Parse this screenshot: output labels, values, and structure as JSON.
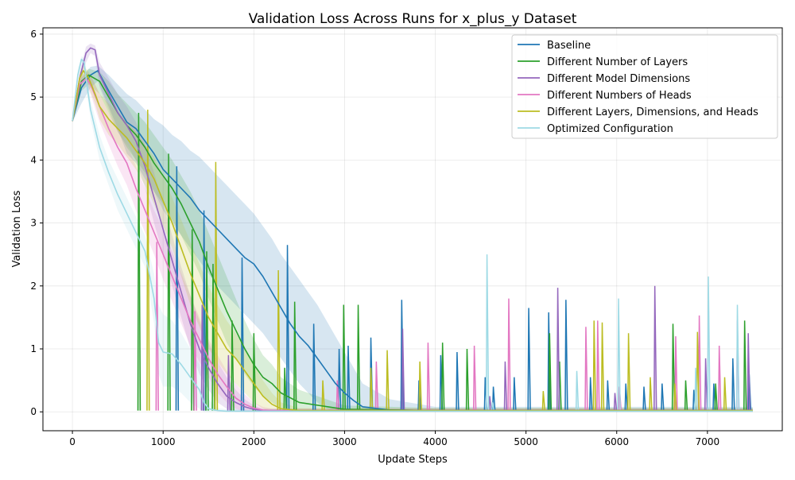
{
  "chart_data": {
    "type": "line",
    "title": "Validation Loss Across Runs for x_plus_y Dataset",
    "xlabel": "Update Steps",
    "ylabel": "Validation Loss",
    "xlim": [
      -325,
      7825
    ],
    "ylim": [
      -0.3,
      6.1
    ],
    "xticks": [
      0,
      1000,
      2000,
      3000,
      4000,
      5000,
      6000,
      7000
    ],
    "yticks": [
      0,
      1,
      2,
      3,
      4,
      5,
      6
    ],
    "grid": true,
    "legend_position": "top-right",
    "series": [
      {
        "name": "Baseline",
        "color": "#1f77b4",
        "x": [
          0,
          100,
          200,
          280,
          400,
          500,
          600,
          700,
          800,
          900,
          1000,
          1100,
          1200,
          1300,
          1400,
          1500,
          1600,
          1700,
          1800,
          1900,
          2000,
          2100,
          2200,
          2300,
          2400,
          2500,
          2600,
          2700,
          2800,
          2900,
          3000,
          3100,
          3200,
          3500,
          4000,
          5000,
          6000,
          7000,
          7500
        ],
        "y": [
          4.62,
          5.15,
          5.35,
          5.42,
          5.1,
          4.85,
          4.6,
          4.5,
          4.3,
          4.1,
          3.85,
          3.7,
          3.55,
          3.4,
          3.2,
          3.05,
          2.9,
          2.75,
          2.6,
          2.45,
          2.35,
          2.15,
          1.9,
          1.65,
          1.4,
          1.2,
          1.05,
          0.85,
          0.65,
          0.45,
          0.3,
          0.18,
          0.08,
          0.03,
          0.02,
          0.02,
          0.02,
          0.02,
          0.02
        ],
        "band_upper": [
          4.65,
          5.3,
          5.48,
          5.5,
          5.35,
          5.2,
          5.05,
          4.95,
          4.8,
          4.65,
          4.55,
          4.4,
          4.3,
          4.15,
          4.05,
          3.9,
          3.75,
          3.6,
          3.45,
          3.3,
          3.15,
          2.95,
          2.75,
          2.5,
          2.3,
          2.1,
          1.9,
          1.7,
          1.45,
          1.2,
          0.95,
          0.7,
          0.45,
          0.2,
          0.08,
          0.08,
          0.08,
          0.08,
          0.08
        ],
        "band_lower": [
          4.6,
          4.9,
          5.15,
          5.25,
          4.85,
          4.5,
          4.1,
          3.95,
          3.7,
          3.5,
          3.2,
          3.0,
          2.8,
          2.6,
          2.4,
          2.2,
          2.0,
          1.85,
          1.7,
          1.55,
          1.4,
          1.25,
          1.05,
          0.85,
          0.65,
          0.45,
          0.3,
          0.15,
          0.05,
          0.0,
          0.0,
          0.0,
          0.0,
          0.0,
          0.0,
          0.0,
          0.0,
          0.0,
          0.0
        ],
        "spikes": [
          [
            1150,
            3.9
          ],
          [
            1450,
            3.2
          ],
          [
            1870,
            2.45
          ],
          [
            2370,
            2.65
          ],
          [
            2660,
            1.4
          ],
          [
            2940,
            1.0
          ],
          [
            3040,
            1.05
          ],
          [
            3290,
            1.18
          ],
          [
            3630,
            1.78
          ],
          [
            3820,
            0.5
          ],
          [
            4060,
            0.9
          ],
          [
            4240,
            0.95
          ],
          [
            4550,
            0.55
          ],
          [
            4640,
            0.4
          ],
          [
            4870,
            0.55
          ],
          [
            5030,
            1.65
          ],
          [
            5250,
            1.58
          ],
          [
            5440,
            1.78
          ],
          [
            5710,
            0.55
          ],
          [
            5900,
            0.5
          ],
          [
            6100,
            0.45
          ],
          [
            6300,
            0.4
          ],
          [
            6500,
            0.45
          ],
          [
            6850,
            0.35
          ],
          [
            7070,
            0.45
          ],
          [
            7280,
            0.85
          ],
          [
            7460,
            0.6
          ]
        ]
      },
      {
        "name": "Different Number of Layers",
        "color": "#2ca02c",
        "x": [
          0,
          100,
          180,
          300,
          400,
          500,
          600,
          700,
          800,
          900,
          1000,
          1100,
          1200,
          1300,
          1400,
          1500,
          1600,
          1700,
          1800,
          1900,
          2000,
          2100,
          2200,
          2300,
          2500,
          3000,
          4000,
          5000,
          6000,
          7000,
          7500
        ],
        "y": [
          4.62,
          5.25,
          5.35,
          5.25,
          5.0,
          4.75,
          4.55,
          4.4,
          4.2,
          3.95,
          3.75,
          3.55,
          3.3,
          3.0,
          2.7,
          2.3,
          1.95,
          1.6,
          1.3,
          1.0,
          0.75,
          0.55,
          0.45,
          0.3,
          0.15,
          0.04,
          0.02,
          0.02,
          0.02,
          0.02,
          0.02
        ],
        "band_upper": [
          4.65,
          5.35,
          5.45,
          5.4,
          5.25,
          5.05,
          4.9,
          4.75,
          4.6,
          4.4,
          4.2,
          4.0,
          3.75,
          3.5,
          3.2,
          2.85,
          2.5,
          2.15,
          1.8,
          1.45,
          1.15,
          0.9,
          0.75,
          0.55,
          0.35,
          0.1,
          0.06,
          0.06,
          0.06,
          0.06,
          0.06
        ],
        "band_lower": [
          4.6,
          5.1,
          5.2,
          5.05,
          4.75,
          4.45,
          4.2,
          4.0,
          3.8,
          3.5,
          3.3,
          3.05,
          2.8,
          2.5,
          2.2,
          1.8,
          1.45,
          1.1,
          0.85,
          0.6,
          0.4,
          0.25,
          0.15,
          0.05,
          0.0,
          0.0,
          0.0,
          0.0,
          0.0,
          0.0,
          0.0
        ],
        "spikes": [
          [
            730,
            4.75
          ],
          [
            1060,
            4.1
          ],
          [
            1320,
            2.9
          ],
          [
            1480,
            2.55
          ],
          [
            1550,
            2.35
          ],
          [
            1760,
            1.45
          ],
          [
            2000,
            1.25
          ],
          [
            2340,
            0.7
          ],
          [
            2450,
            1.75
          ],
          [
            2990,
            1.7
          ],
          [
            3150,
            1.7
          ],
          [
            4080,
            1.1
          ],
          [
            4350,
            1.0
          ],
          [
            5260,
            1.25
          ],
          [
            5370,
            0.8
          ],
          [
            6620,
            1.4
          ],
          [
            6760,
            0.5
          ],
          [
            7090,
            0.45
          ],
          [
            7410,
            1.45
          ]
        ]
      },
      {
        "name": "Different Model Dimensions",
        "color": "#9467bd",
        "x": [
          0,
          80,
          150,
          200,
          250,
          300,
          400,
          500,
          600,
          700,
          800,
          900,
          1000,
          1100,
          1200,
          1300,
          1400,
          1500,
          1600,
          1700,
          1800,
          1900,
          2000,
          2100,
          2200,
          2300,
          2500,
          3000,
          4000,
          5000,
          6000,
          7000,
          7500
        ],
        "y": [
          4.62,
          5.3,
          5.7,
          5.78,
          5.75,
          5.35,
          5.05,
          4.75,
          4.55,
          4.3,
          3.9,
          3.4,
          2.9,
          2.4,
          1.9,
          1.4,
          1.0,
          0.7,
          0.45,
          0.25,
          0.15,
          0.08,
          0.04,
          0.02,
          0.02,
          0.02,
          0.02,
          0.02,
          0.02,
          0.02,
          0.02,
          0.02,
          0.02
        ],
        "band_upper": [
          4.65,
          5.4,
          5.8,
          5.85,
          5.82,
          5.55,
          5.3,
          5.05,
          4.85,
          4.6,
          4.25,
          3.8,
          3.3,
          2.8,
          2.3,
          1.85,
          1.45,
          1.1,
          0.8,
          0.55,
          0.35,
          0.2,
          0.1,
          0.05,
          0.05,
          0.05,
          0.05,
          0.05,
          0.05,
          0.05,
          0.05,
          0.05,
          0.05
        ],
        "band_lower": [
          4.6,
          5.2,
          5.55,
          5.7,
          5.65,
          5.15,
          4.8,
          4.45,
          4.25,
          4.0,
          3.55,
          3.0,
          2.5,
          2.0,
          1.5,
          1.0,
          0.6,
          0.35,
          0.15,
          0.05,
          0.0,
          0.0,
          0.0,
          0.0,
          0.0,
          0.0,
          0.0,
          0.0,
          0.0,
          0.0,
          0.0,
          0.0,
          0.0
        ],
        "spikes": [
          [
            1430,
            1.7
          ],
          [
            1720,
            0.9
          ],
          [
            3640,
            1.32
          ],
          [
            4600,
            0.25
          ],
          [
            4770,
            0.8
          ],
          [
            5350,
            1.97
          ],
          [
            5980,
            0.3
          ],
          [
            6420,
            2.0
          ],
          [
            6980,
            0.85
          ],
          [
            7450,
            1.25
          ]
        ]
      },
      {
        "name": "Different Numbers of Heads",
        "color": "#e377c2",
        "x": [
          0,
          80,
          150,
          200,
          300,
          400,
          500,
          600,
          700,
          800,
          900,
          1000,
          1100,
          1200,
          1300,
          1400,
          1500,
          1600,
          1700,
          1800,
          1900,
          2000,
          2100,
          2200,
          2300,
          2500,
          3000,
          4000,
          5000,
          6000,
          7000,
          7500
        ],
        "y": [
          4.62,
          5.2,
          5.3,
          5.2,
          4.85,
          4.5,
          4.2,
          3.95,
          3.55,
          3.2,
          2.85,
          2.5,
          2.15,
          1.8,
          1.45,
          1.15,
          0.85,
          0.6,
          0.4,
          0.22,
          0.12,
          0.06,
          0.03,
          0.02,
          0.02,
          0.02,
          0.02,
          0.02,
          0.02,
          0.02,
          0.02,
          0.02
        ],
        "band_upper": [
          4.65,
          5.3,
          5.4,
          5.35,
          5.05,
          4.75,
          4.5,
          4.25,
          3.9,
          3.55,
          3.2,
          2.9,
          2.55,
          2.2,
          1.85,
          1.5,
          1.15,
          0.9,
          0.65,
          0.45,
          0.28,
          0.15,
          0.08,
          0.05,
          0.05,
          0.05,
          0.05,
          0.05,
          0.05,
          0.05,
          0.05,
          0.05
        ],
        "band_lower": [
          4.6,
          5.1,
          5.2,
          5.05,
          4.6,
          4.25,
          3.9,
          3.6,
          3.2,
          2.85,
          2.5,
          2.1,
          1.75,
          1.4,
          1.05,
          0.8,
          0.55,
          0.3,
          0.15,
          0.05,
          0.0,
          0.0,
          0.0,
          0.0,
          0.0,
          0.0,
          0.0,
          0.0,
          0.0,
          0.0,
          0.0,
          0.0
        ],
        "spikes": [
          [
            930,
            2.7
          ],
          [
            1350,
            1.6
          ],
          [
            2920,
            0.5
          ],
          [
            3350,
            0.8
          ],
          [
            3920,
            1.1
          ],
          [
            4430,
            1.05
          ],
          [
            4810,
            1.8
          ],
          [
            5660,
            1.35
          ],
          [
            5790,
            1.45
          ],
          [
            6030,
            0.4
          ],
          [
            6650,
            1.2
          ],
          [
            6910,
            1.53
          ],
          [
            7130,
            1.05
          ],
          [
            7330,
            1.45
          ]
        ]
      },
      {
        "name": "Different Layers, Dimensions, and Heads",
        "color": "#bcbd22",
        "x": [
          0,
          80,
          120,
          180,
          250,
          300,
          400,
          500,
          600,
          700,
          800,
          900,
          1000,
          1100,
          1200,
          1300,
          1400,
          1500,
          1600,
          1700,
          1800,
          1900,
          2000,
          2100,
          2200,
          2300,
          2500,
          3000,
          4000,
          5000,
          6000,
          7000,
          7500
        ],
        "y": [
          4.62,
          5.3,
          5.42,
          5.3,
          5.05,
          4.85,
          4.65,
          4.5,
          4.35,
          4.15,
          3.95,
          3.7,
          3.35,
          3.0,
          2.6,
          2.2,
          1.85,
          1.5,
          1.25,
          1.0,
          0.85,
          0.65,
          0.45,
          0.25,
          0.12,
          0.05,
          0.02,
          0.02,
          0.02,
          0.02,
          0.02,
          0.02,
          0.02
        ],
        "band_upper": [
          4.65,
          5.38,
          5.5,
          5.4,
          5.2,
          5.05,
          4.9,
          4.75,
          4.6,
          4.45,
          4.25,
          4.05,
          3.75,
          3.4,
          3.05,
          2.7,
          2.35,
          2.0,
          1.7,
          1.45,
          1.25,
          1.0,
          0.75,
          0.5,
          0.3,
          0.15,
          0.06,
          0.06,
          0.06,
          0.06,
          0.06,
          0.06,
          0.06
        ],
        "band_lower": [
          4.6,
          5.2,
          5.32,
          5.15,
          4.9,
          4.65,
          4.4,
          4.25,
          4.05,
          3.85,
          3.6,
          3.3,
          2.95,
          2.6,
          2.15,
          1.7,
          1.35,
          1.0,
          0.8,
          0.6,
          0.45,
          0.3,
          0.15,
          0.05,
          0.0,
          0.0,
          0.0,
          0.0,
          0.0,
          0.0,
          0.0,
          0.0,
          0.0
        ],
        "spikes": [
          [
            830,
            4.8
          ],
          [
            1580,
            3.97
          ],
          [
            2270,
            2.25
          ],
          [
            2760,
            0.5
          ],
          [
            3290,
            0.7
          ],
          [
            3470,
            0.98
          ],
          [
            3830,
            0.8
          ],
          [
            5190,
            0.33
          ],
          [
            5750,
            1.45
          ],
          [
            5840,
            1.42
          ],
          [
            6130,
            1.25
          ],
          [
            6370,
            0.55
          ],
          [
            6640,
            0.45
          ],
          [
            6890,
            1.27
          ],
          [
            7190,
            0.55
          ]
        ]
      },
      {
        "name": "Optimized Configuration",
        "color": "#9edae5",
        "x": [
          0,
          60,
          100,
          130,
          160,
          200,
          300,
          400,
          500,
          600,
          700,
          800,
          900,
          950,
          1000,
          1100,
          1200,
          1300,
          1400,
          1450,
          1500,
          1600,
          1700,
          2000,
          3000,
          4000,
          5000,
          6000,
          7000,
          7500
        ],
        "y": [
          4.62,
          5.35,
          5.6,
          5.55,
          5.2,
          4.8,
          4.2,
          3.8,
          3.45,
          3.15,
          2.85,
          2.55,
          1.8,
          1.1,
          0.95,
          0.92,
          0.75,
          0.55,
          0.35,
          0.15,
          0.05,
          0.02,
          0.01,
          0.01,
          0.01,
          0.01,
          0.01,
          0.01,
          0.01,
          0.01
        ],
        "band_upper": [
          4.65,
          5.45,
          5.65,
          5.62,
          5.35,
          4.95,
          4.4,
          4.0,
          3.7,
          3.4,
          3.1,
          2.8,
          2.2,
          1.7,
          1.55,
          1.45,
          1.25,
          1.0,
          0.75,
          0.45,
          0.2,
          0.06,
          0.04,
          0.04,
          0.04,
          0.04,
          0.04,
          0.04,
          0.04,
          0.04
        ],
        "band_lower": [
          4.6,
          5.25,
          5.55,
          5.45,
          5.05,
          4.65,
          4.0,
          3.6,
          3.2,
          2.9,
          2.6,
          2.3,
          1.4,
          0.6,
          0.4,
          0.4,
          0.3,
          0.15,
          0.05,
          0.0,
          0.0,
          0.0,
          0.0,
          0.0,
          0.0,
          0.0,
          0.0,
          0.0,
          0.0,
          0.0
        ],
        "spikes": [
          [
            4570,
            2.5
          ],
          [
            4630,
            0.15
          ],
          [
            5560,
            0.65
          ],
          [
            6020,
            1.8
          ],
          [
            6870,
            0.7
          ],
          [
            7010,
            2.15
          ],
          [
            7330,
            1.7
          ]
        ]
      }
    ]
  }
}
